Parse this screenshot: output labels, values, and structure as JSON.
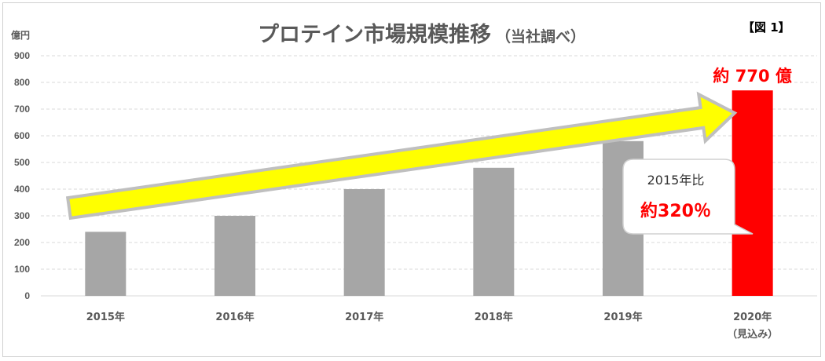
{
  "header": {
    "title": "プロテイン市場規模推移",
    "subtitle": "（当社調べ）",
    "figure_label": "【図 1】",
    "unit_label": "億円"
  },
  "annotations": {
    "highlight": "約 770 億",
    "callout_line1": "2015年比",
    "callout_line2": "約320％"
  },
  "colors": {
    "bar": "#a6a6a6",
    "highlight_bar": "#ff0000",
    "arrow_fill": "#ffff00",
    "arrow_stroke": "#bfbfbf",
    "text": "#595959"
  },
  "chart_data": {
    "type": "bar",
    "title": "プロテイン市場規模推移",
    "subtitle": "（当社調べ）",
    "ylabel": "億円",
    "xlabel": "",
    "ylim": [
      0,
      900
    ],
    "yticks": [
      0,
      100,
      200,
      300,
      400,
      500,
      600,
      700,
      800,
      900
    ],
    "grid": true,
    "categories": [
      "2015年",
      "2016年",
      "2017年",
      "2018年",
      "2019年",
      "2020年"
    ],
    "category_sublabels": [
      "",
      "",
      "",
      "",
      "",
      "（見込み）"
    ],
    "values": [
      240,
      300,
      400,
      480,
      580,
      770
    ],
    "highlight_index": 5
  }
}
